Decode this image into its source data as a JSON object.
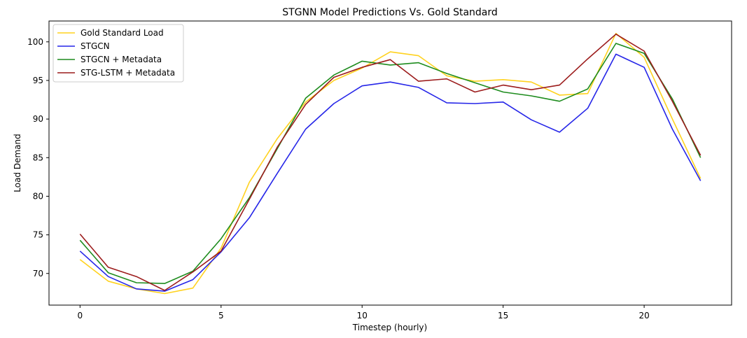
{
  "chart_data": {
    "type": "line",
    "title": "STGNN Model Predictions Vs. Gold Standard",
    "xlabel": "Timestep (hourly)",
    "ylabel": "Load Demand",
    "xlim": [
      -1.1,
      23.1
    ],
    "ylim": [
      65.9,
      102.7
    ],
    "xticks": [
      0,
      5,
      10,
      15,
      20
    ],
    "yticks": [
      70,
      75,
      80,
      85,
      90,
      95,
      100
    ],
    "grid": false,
    "legend_position": "top-left",
    "x": [
      0,
      1,
      2,
      3,
      4,
      5,
      6,
      7,
      8,
      9,
      10,
      11,
      12,
      13,
      14,
      15,
      16,
      17,
      18,
      19,
      20,
      21,
      22
    ],
    "series": [
      {
        "name": "Gold Standard Load",
        "color": "#FFD21F",
        "values": [
          71.8,
          69.0,
          68.0,
          67.4,
          68.1,
          73.3,
          81.8,
          87.5,
          92.2,
          95.0,
          96.6,
          98.7,
          98.2,
          95.6,
          94.9,
          95.1,
          94.8,
          93.1,
          93.3,
          101.1,
          98.0,
          90.0,
          82.3
        ]
      },
      {
        "name": "STGCN",
        "color": "#2626E8",
        "values": [
          72.9,
          69.6,
          68.0,
          67.7,
          69.2,
          72.8,
          77.2,
          83.0,
          88.7,
          92.0,
          94.3,
          94.8,
          94.1,
          92.1,
          92.0,
          92.2,
          89.9,
          88.3,
          91.4,
          98.4,
          96.7,
          88.7,
          82.0
        ]
      },
      {
        "name": "STGCN + Metadata",
        "color": "#1E8C1E",
        "values": [
          74.3,
          70.1,
          68.8,
          68.7,
          70.3,
          74.5,
          79.8,
          86.2,
          92.7,
          95.7,
          97.5,
          97.0,
          97.3,
          95.9,
          94.7,
          93.5,
          93.0,
          92.3,
          93.9,
          99.8,
          98.5,
          92.6,
          85.0
        ]
      },
      {
        "name": "STG-LSTM + Metadata",
        "color": "#9C1C1C",
        "values": [
          75.1,
          70.8,
          69.6,
          67.8,
          70.2,
          72.9,
          79.6,
          86.4,
          91.9,
          95.4,
          96.7,
          97.7,
          94.9,
          95.2,
          93.5,
          94.4,
          93.8,
          94.4,
          97.8,
          101.0,
          98.8,
          92.3,
          85.3
        ]
      }
    ]
  }
}
